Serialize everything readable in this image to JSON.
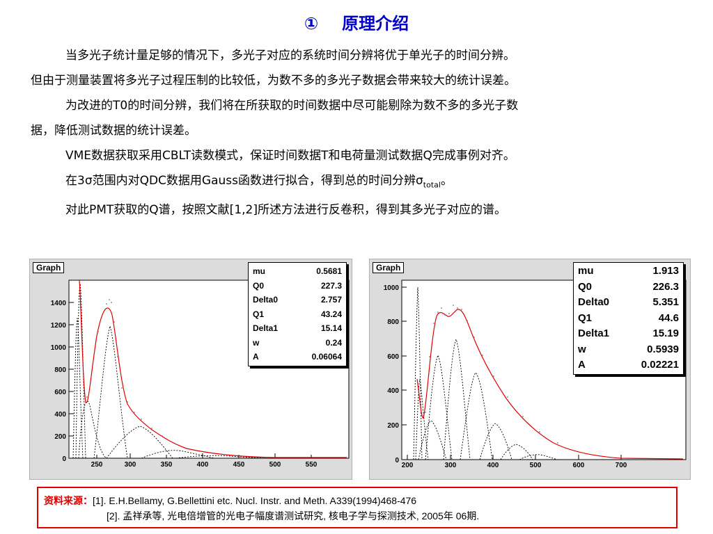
{
  "title": {
    "number": "①",
    "text": "原理介绍"
  },
  "paragraphs": [
    "当多光子统计量足够的情况下，多光子对应的系统时间分辨将优于单光子的时间分辨。",
    "但由于测量装置将多光子过程压制的比较低，为数不多的多光子数据会带来较大的统计误差。",
    "为改进的T0的时间分辨，我们将在所获取的时间数据中尽可能剔除为数不多的多光子数",
    "据，降低测试数据的统计误差。",
    "VME数据获取采用CBLT读数模式，保证时间数据T和电荷量测试数据Q完成事例对齐。",
    "在3σ范围内对QDC数据用Gauss函数进行拟合，得到总的时间分辨σ",
    "total",
    "。",
    "对此PMT获取的Q谱，按照文献[1,2]所述方法进行反卷积，得到其多光子对应的谱。"
  ],
  "plots": [
    {
      "label": "Graph",
      "stats": [
        {
          "name": "mu",
          "value": "0.5681"
        },
        {
          "name": "Q0",
          "value": "227.3"
        },
        {
          "name": "Delta0",
          "value": "2.757"
        },
        {
          "name": "Q1",
          "value": "43.24"
        },
        {
          "name": "Delta1",
          "value": "15.14"
        },
        {
          "name": "w",
          "value": "0.24"
        },
        {
          "name": "A",
          "value": "0.06064"
        }
      ],
      "xticks": [
        "250",
        "300",
        "350",
        "400",
        "450",
        "500",
        "550"
      ],
      "yticks": [
        "0",
        "200",
        "400",
        "600",
        "800",
        "1000",
        "1200",
        "1400"
      ]
    },
    {
      "label": "Graph",
      "stats": [
        {
          "name": "mu",
          "value": "1.913"
        },
        {
          "name": "Q0",
          "value": "226.3"
        },
        {
          "name": "Delta0",
          "value": "5.351"
        },
        {
          "name": "Q1",
          "value": "44.6"
        },
        {
          "name": "Delta1",
          "value": "15.19"
        },
        {
          "name": "w",
          "value": "0.5939"
        },
        {
          "name": "A",
          "value": "0.02221"
        }
      ],
      "xticks": [
        "200",
        "300",
        "400",
        "500",
        "600",
        "700"
      ],
      "yticks": [
        "0",
        "200",
        "400",
        "600",
        "800",
        "1000"
      ]
    }
  ],
  "references": {
    "source_label": "资料来源：",
    "ref1": "[1]. E.H.Bellamy, G.Bellettini etc. Nucl. Instr. and Meth. A339(1994)468-476",
    "ref2": "[2]. 孟祥承等, 光电倍增管的光电子幅度谱测试研究, 核电子学与探测技术, 2005年 06期."
  },
  "colors": {
    "title": "#0000cc",
    "fit": "#e00000",
    "reference_border": "#e00000"
  }
}
